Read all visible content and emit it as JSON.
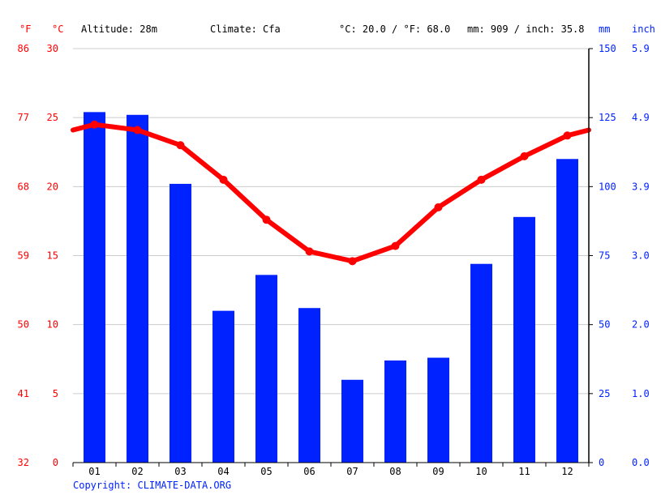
{
  "header": {
    "f_unit": "°F",
    "c_unit": "°C",
    "altitude": "Altitude: 28m",
    "climate": "Climate: Cfa",
    "avg_temp": "°C: 20.0 / °F: 68.0",
    "precip": "mm: 909 / inch: 35.8",
    "mm_unit": "mm",
    "inch_unit": "inch"
  },
  "copyright": "Copyright: CLIMATE-DATA.ORG",
  "colors": {
    "temp": "#ff0000",
    "precip": "#0022ff",
    "grid": "#cccccc",
    "axis": "#000000"
  },
  "chart_data": {
    "type": "bar",
    "categories": [
      "01",
      "02",
      "03",
      "04",
      "05",
      "06",
      "07",
      "08",
      "09",
      "10",
      "11",
      "12"
    ],
    "series": [
      {
        "type": "bar",
        "axis": "right",
        "values": [
          127,
          126,
          101,
          55,
          68,
          56,
          30,
          37,
          38,
          72,
          89,
          110
        ]
      },
      {
        "type": "line",
        "axis": "left",
        "values": [
          24.5,
          24.1,
          23.0,
          20.5,
          17.6,
          15.3,
          14.6,
          15.7,
          18.5,
          20.5,
          22.2,
          23.7
        ]
      }
    ],
    "left_axis_c": {
      "ylim": [
        0,
        30
      ],
      "ticks": [
        "0",
        "5",
        "10",
        "15",
        "20",
        "25",
        "30"
      ]
    },
    "left_axis_f": {
      "ticks": [
        "32",
        "41",
        "50",
        "59",
        "68",
        "77",
        "86"
      ]
    },
    "right_axis_mm": {
      "ylim": [
        0,
        150
      ],
      "ticks": [
        "0",
        "25",
        "50",
        "75",
        "100",
        "125",
        "150"
      ]
    },
    "right_axis_inch": {
      "ticks": [
        "0.0",
        "1.0",
        "2.0",
        "3.0",
        "3.9",
        "4.9",
        "5.9"
      ]
    },
    "grid": true
  }
}
